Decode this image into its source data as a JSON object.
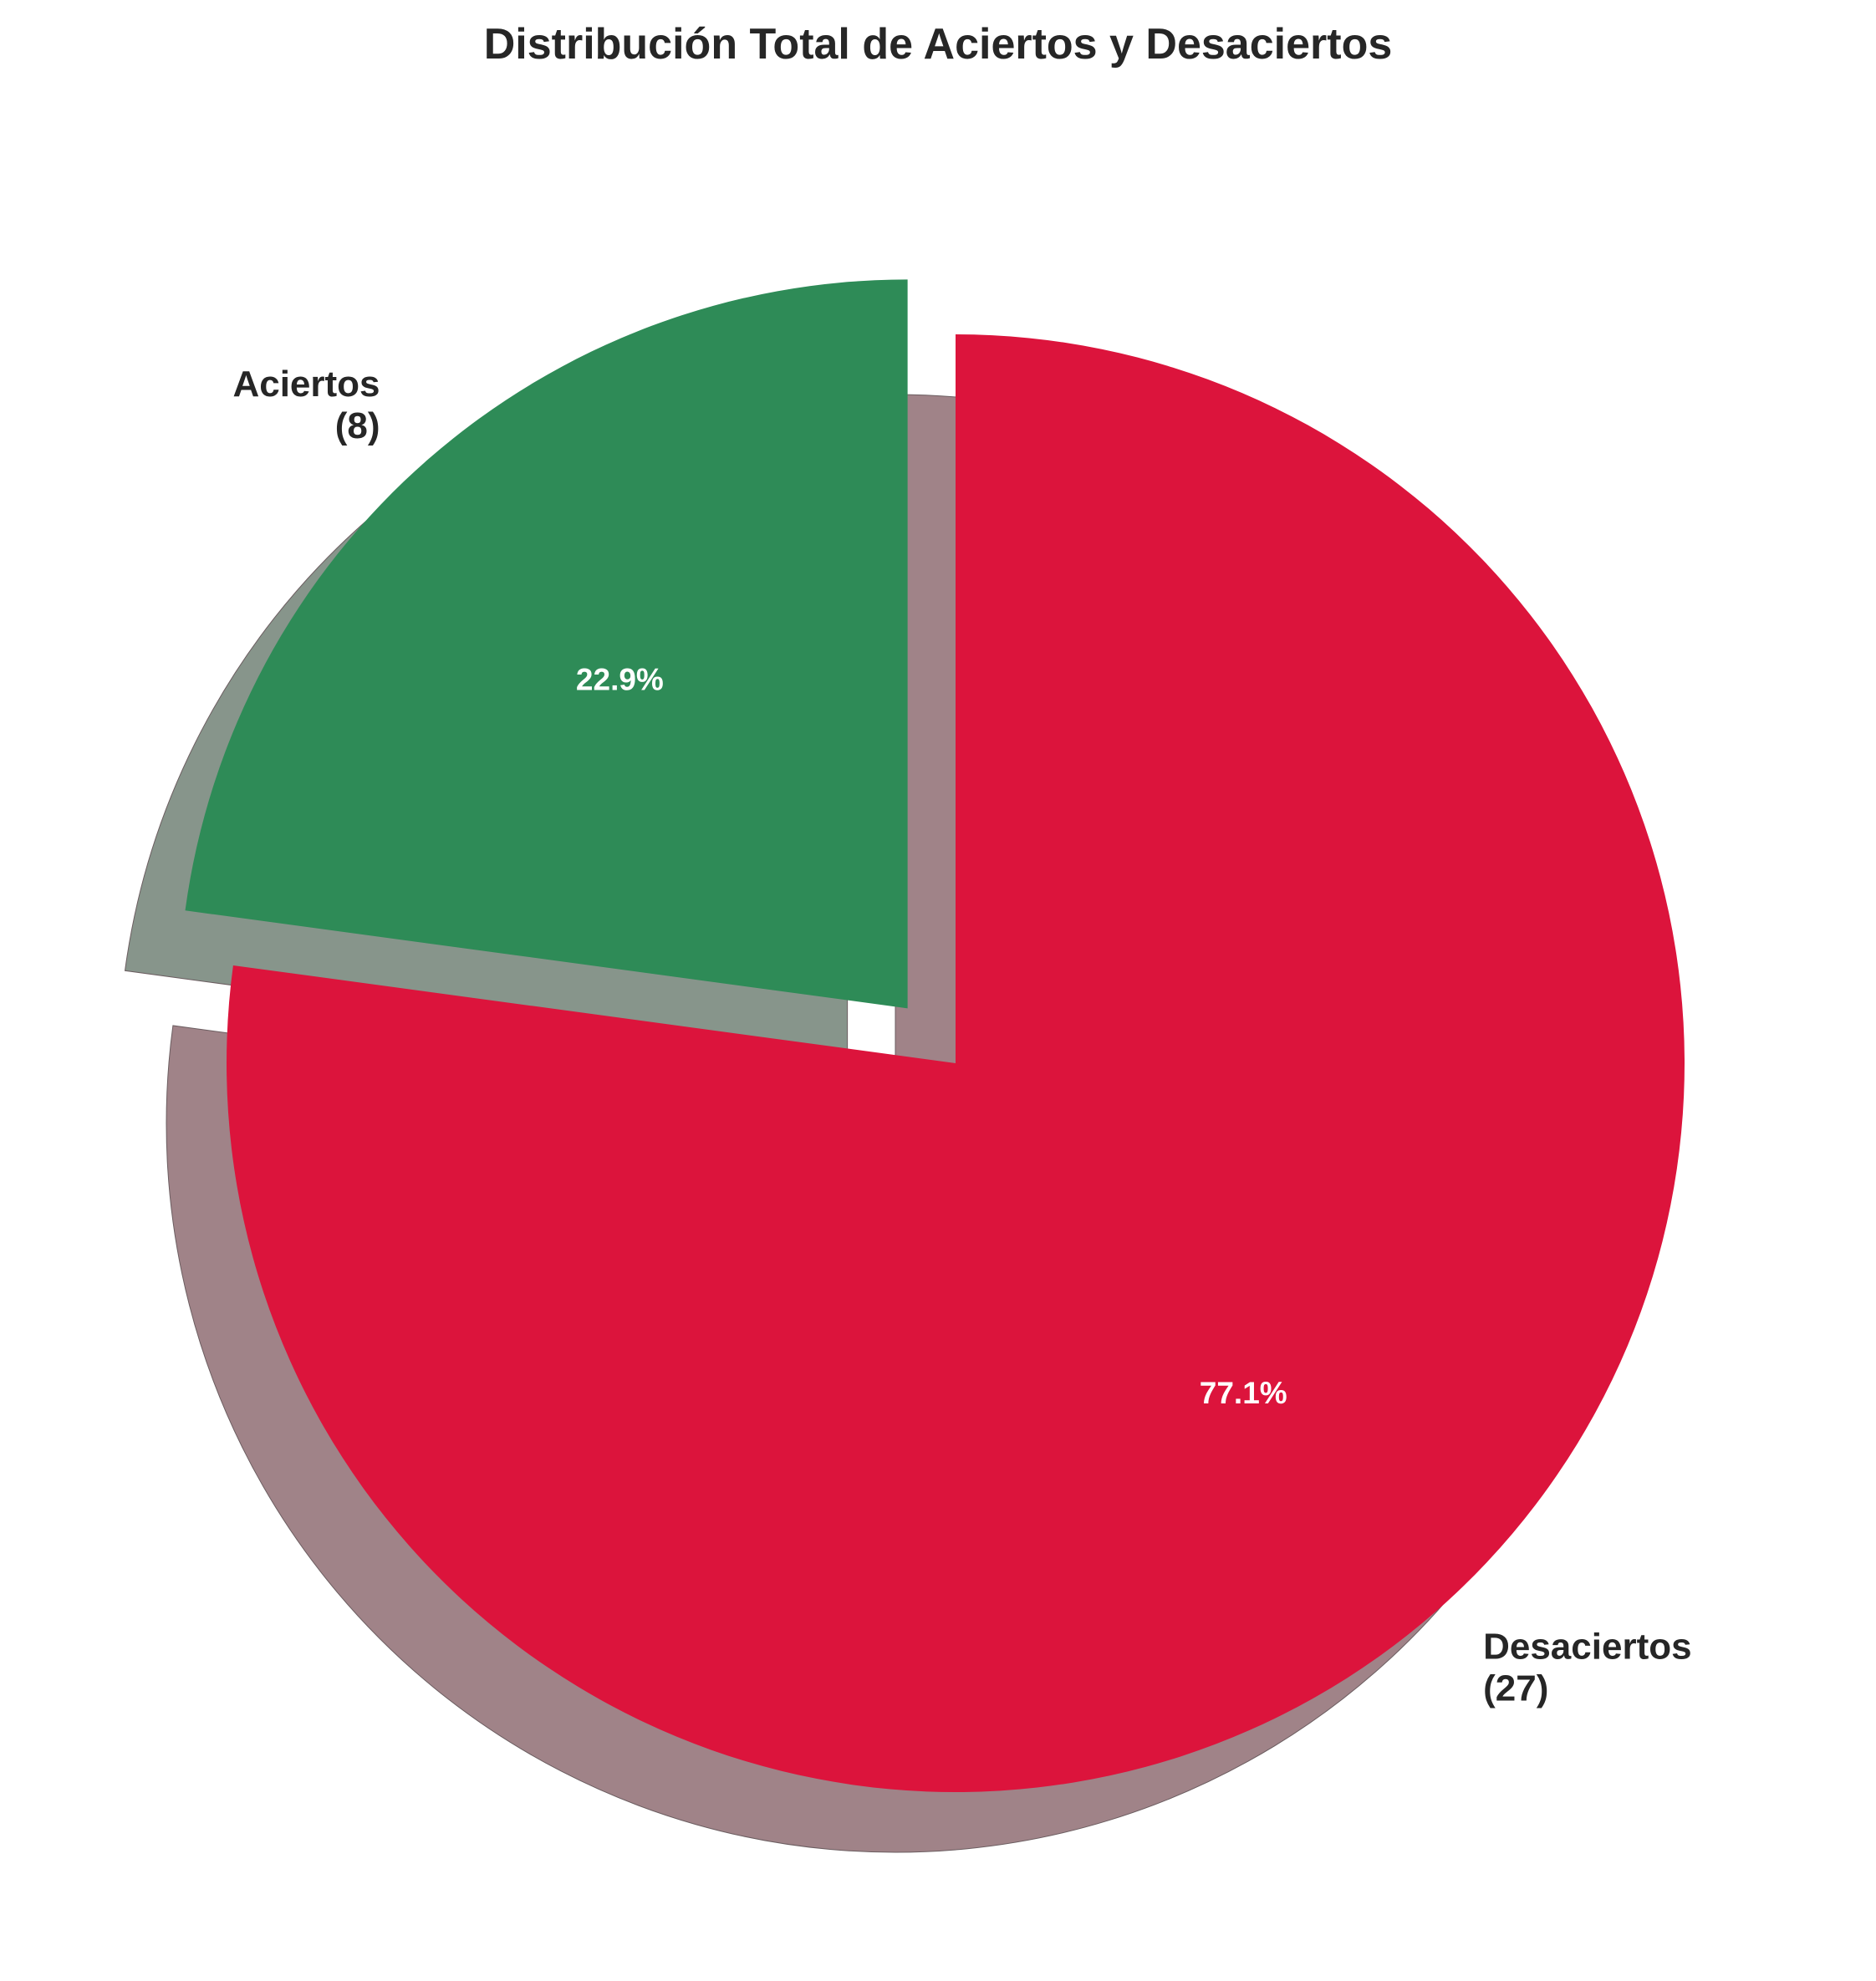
{
  "chart_data": {
    "type": "pie",
    "title": "Distribución Total de Aciertos y Desaciertos",
    "start_angle_deg": 90,
    "direction": "counterclockwise",
    "shadow": true,
    "slices": [
      {
        "label": "Aciertos",
        "count_label": "(8)",
        "value": 8,
        "percent_label": "22.9%",
        "color": "#2e8b57",
        "exploded": true
      },
      {
        "label": "Desaciertos",
        "count_label": "(27)",
        "value": 27,
        "percent_label": "77.1%",
        "color": "#dc143c",
        "exploded": false
      }
    ]
  }
}
